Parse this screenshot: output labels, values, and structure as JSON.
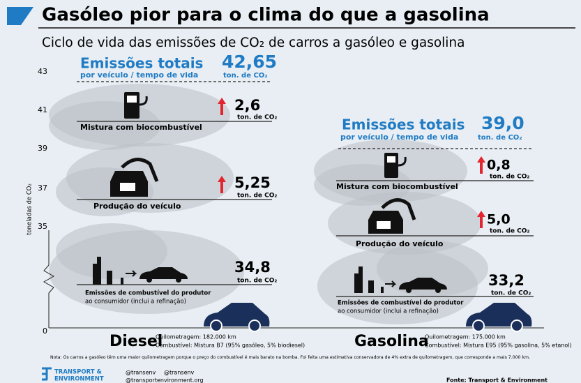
{
  "header": {
    "title": "Gasóleo pior para o clima do que a gasolina",
    "subtitle": "Ciclo de vida das emissões de CO₂ de carros a gasóleo e gasolina"
  },
  "axis": {
    "label": "toneladas de CO₂",
    "ticks": [
      "43",
      "41",
      "39",
      "37",
      "35",
      "0"
    ]
  },
  "columns": [
    {
      "name": "Diesel",
      "mileage": "Quilometragem: 182.000 km",
      "fuel": "Combustível: Mistura B7 (95% gasóleo, 5% biodiesel)",
      "total": {
        "heading": "Emissões totais",
        "subheading": "por veículo / tempo de vida",
        "value": "42,65",
        "unit": "ton. de CO₂"
      },
      "segments": [
        {
          "label": [
            "Mistura com biocombustível"
          ],
          "value": "2,6",
          "unit": "ton. de CO₂"
        },
        {
          "label": [
            "Produção do veículo"
          ],
          "value": "5,25",
          "unit": "ton. de CO₂"
        },
        {
          "label": [
            "Emissões de combustível do produtor",
            "ao consumidor (inclui a refinação)"
          ],
          "value": "34,8",
          "unit": "ton. de CO₂"
        }
      ]
    },
    {
      "name": "Gasolina",
      "mileage": "Quilometragem: 175.000 km",
      "fuel": "Combustível: Mistura E95 (95% gasolina, 5% etanol)",
      "total": {
        "heading": "Emissões totais",
        "subheading": "por veículo / tempo de vida",
        "value": "39,0",
        "unit": "ton. de CO₂"
      },
      "segments": [
        {
          "label": [
            "Mistura com biocombustível"
          ],
          "value": "0,8",
          "unit": "ton. de CO₂"
        },
        {
          "label": [
            "Produção do veículo"
          ],
          "value": "5,0",
          "unit": "ton. de CO₂"
        },
        {
          "label": [
            "Emissões de combustível do produtor",
            "ao consumidor (inclui a refinação)"
          ],
          "value": "33,2",
          "unit": "ton. de CO₂"
        }
      ]
    }
  ],
  "note": "Nota: Os carros a gasóleo têm uma maior quilometragem porque o preço do combustível é mais barato na bomba. Foi feita uma estimativa conservadora de 4% extra de quilometragem, que corresponde a mais 7.000 km.",
  "footer": {
    "logo": [
      "TRANSPORT &",
      "ENVIRONMENT"
    ],
    "twitter": "@transenv",
    "facebook": "@transenv",
    "web": "@transportenvironment.org",
    "source": "Fonte: Transport & Environment"
  }
}
